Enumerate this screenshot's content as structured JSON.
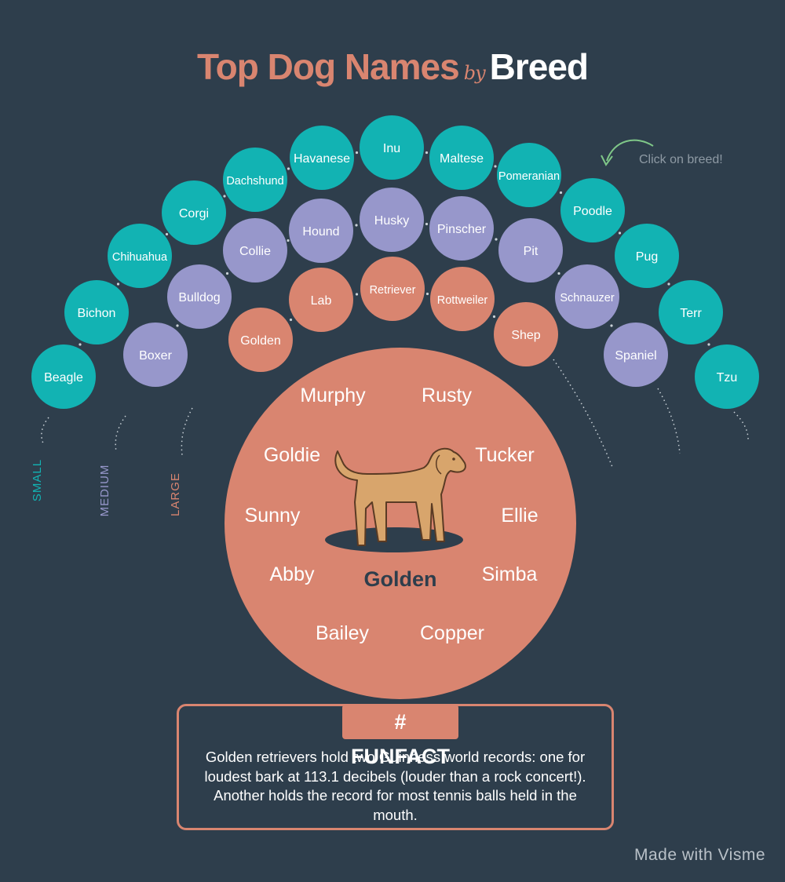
{
  "title": {
    "part1": "Top Dog Names",
    "part2": "by",
    "part3": "Breed"
  },
  "hint": "Click on breed!",
  "colors": {
    "background": "#2e3e4c",
    "small": "#12b3b3",
    "medium": "#9797cb",
    "large": "#d98570",
    "white": "#ffffff",
    "dark_text": "#2e3e4c",
    "hint_arrow": "#7fc788"
  },
  "size_labels": [
    {
      "label": "SMALL",
      "size": "small"
    },
    {
      "label": "MEDIUM",
      "size": "medium"
    },
    {
      "label": "LARGE",
      "size": "large"
    }
  ],
  "breeds": {
    "small": [
      "Beagle",
      "Bichon",
      "Chihuahua",
      "Corgi",
      "Dachshund",
      "Havanese",
      "Inu",
      "Maltese",
      "Pomeranian",
      "Poodle",
      "Pug",
      "Terr",
      "Tzu"
    ],
    "medium": [
      "Boxer",
      "Bulldog",
      "Collie",
      "Hound",
      "Husky",
      "Pinscher",
      "Pit",
      "Schnauzer",
      "Spaniel"
    ],
    "large": [
      "Golden",
      "Lab",
      "Retriever",
      "Rottweiler",
      "Shep"
    ]
  },
  "selected": {
    "breed": "Golden",
    "names": [
      "Murphy",
      "Rusty",
      "Goldie",
      "Tucker",
      "Sunny",
      "Ellie",
      "Abby",
      "Simba",
      "Bailey",
      "Copper"
    ]
  },
  "funfact": {
    "label": "# FUNFACT",
    "text": "Golden retrievers hold two Guinness world records: one for loudest bark at 113.1 decibels (louder than a rock concert!). Another holds the record for most tennis balls held in the mouth."
  },
  "footer": "Made with Visme"
}
